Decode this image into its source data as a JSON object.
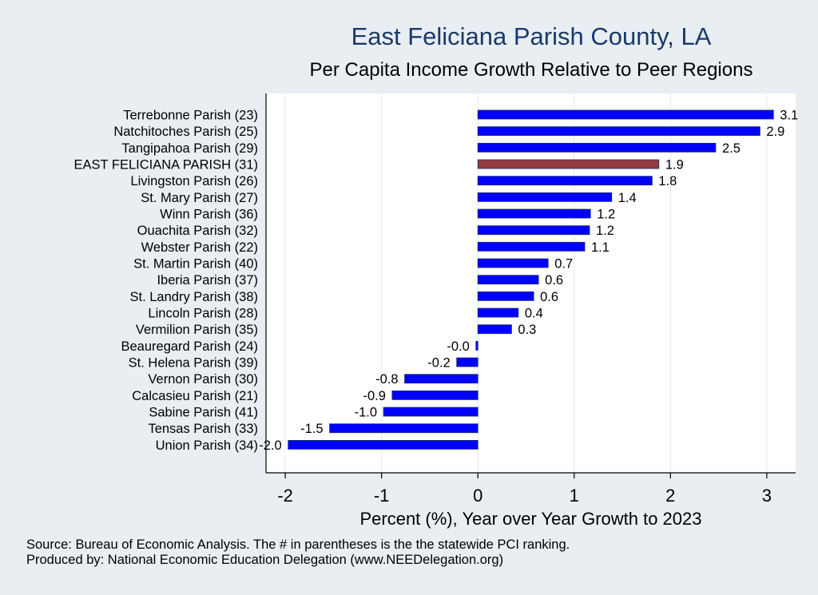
{
  "chart_data": {
    "type": "bar",
    "orientation": "horizontal",
    "title": "East Feliciana Parish County, LA",
    "subtitle": "Per Capita Income Growth Relative to Peer Regions",
    "xlabel": "Percent (%), Year over Year Growth to 2023",
    "ylabel": "",
    "xlim": [
      -2.2,
      3.3
    ],
    "xticks": [
      "-2",
      "-1",
      "0",
      "1",
      "2",
      "3"
    ],
    "xtick_values": [
      -2,
      -1,
      0,
      1,
      2,
      3
    ],
    "grid": true,
    "categories": [
      "Terrebonne Parish (23)",
      "Natchitoches Parish (25)",
      "Tangipahoa Parish (29)",
      "EAST FELICIANA PARISH (31)",
      "Livingston Parish (26)",
      "St. Mary Parish (27)",
      "Winn Parish (36)",
      "Ouachita Parish (32)",
      "Webster Parish (22)",
      "St. Martin Parish (40)",
      "Iberia Parish (37)",
      "St. Landry Parish (38)",
      "Lincoln Parish (28)",
      "Vermilion Parish (35)",
      "Beauregard Parish (24)",
      "St. Helena Parish (39)",
      "Vernon Parish (30)",
      "Calcasieu Parish (21)",
      "Sabine Parish (41)",
      "Tensas Parish (33)",
      "Union Parish (34)"
    ],
    "values": [
      3.07,
      2.93,
      2.47,
      1.88,
      1.81,
      1.39,
      1.17,
      1.16,
      1.11,
      0.73,
      0.63,
      0.58,
      0.42,
      0.35,
      -0.02,
      -0.22,
      -0.76,
      -0.89,
      -0.98,
      -1.54,
      -1.97
    ],
    "value_labels": [
      "3.1",
      "2.9",
      "2.5",
      "1.9",
      "1.8",
      "1.4",
      "1.2",
      "1.2",
      "1.1",
      "0.7",
      "0.6",
      "0.6",
      "0.4",
      "0.3",
      "-0.0",
      "-0.2",
      "-0.8",
      "-0.9",
      "-1.0",
      "-1.5",
      "-2.0"
    ],
    "highlight_index": 3,
    "colors": {
      "bar": "#0000ff",
      "highlight": "#943a3c",
      "bar_outline": "#1a2a6b",
      "plot_bg": "#ffffff",
      "grid": "#e6eef2"
    }
  },
  "footer": {
    "source": "Source: Bureau of Economic Analysis. The # in parentheses is the the statewide PCI ranking.",
    "producer": "Produced by: National Economic Education Delegation (www.NEEDelegation.org)"
  }
}
